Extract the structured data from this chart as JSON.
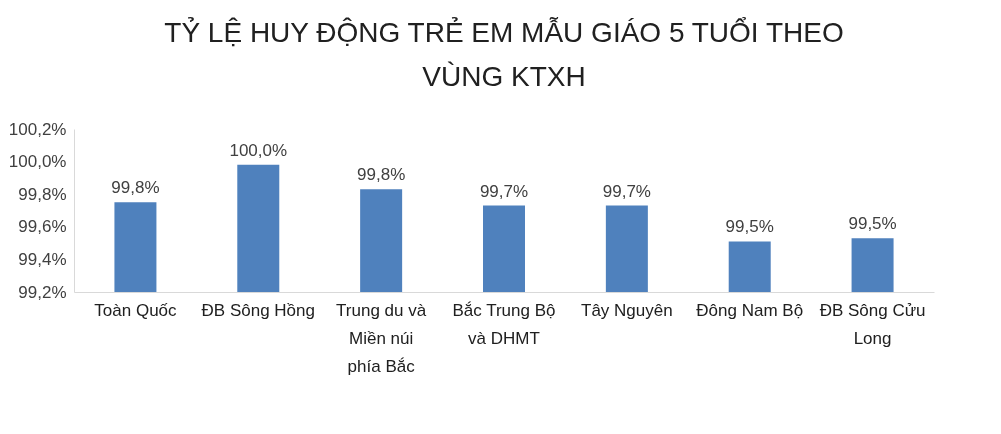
{
  "chart_data": {
    "type": "bar",
    "title": "TỶ LỆ HUY ĐỘNG TRẺ EM MẪU GIÁO 5 TUỔI THEO VÙNG KTXH",
    "categories": [
      "Toàn Quốc",
      "ĐB Sông Hồng",
      "Trung du và Miền núi phía Bắc",
      "Bắc Trung Bộ và DHMT",
      "Tây Nguyên",
      "Đông Nam Bộ",
      "ĐB Sông Cửu Long"
    ],
    "values": [
      99.75,
      99.98,
      99.83,
      99.73,
      99.73,
      99.51,
      99.53
    ],
    "value_labels": [
      "99,8%",
      "100,0%",
      "99,8%",
      "99,7%",
      "99,7%",
      "99,5%",
      "99,5%"
    ],
    "color": "#4f81bd",
    "ylim": [
      99.2,
      100.2
    ],
    "yticks": [
      {
        "value": 99.2,
        "label": "99,2%"
      },
      {
        "value": 99.4,
        "label": "99,4%"
      },
      {
        "value": 99.6,
        "label": "99,6%"
      },
      {
        "value": 99.8,
        "label": "99,8%"
      },
      {
        "value": 100.0,
        "label": "100,0%"
      },
      {
        "value": 100.2,
        "label": "100,2%"
      }
    ],
    "grid": false
  }
}
